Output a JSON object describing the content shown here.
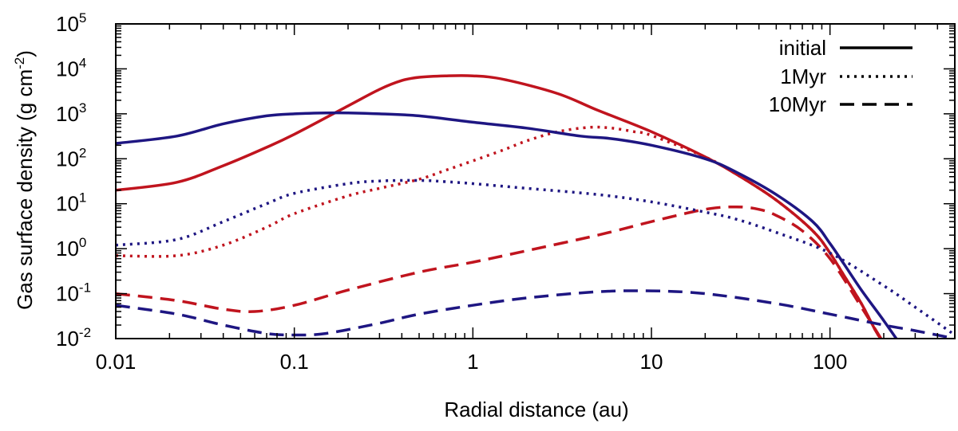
{
  "chart_data": {
    "type": "line",
    "xscale": "log",
    "yscale": "log",
    "xlim": [
      0.01,
      500
    ],
    "ylim": [
      0.01,
      100000
    ],
    "xlabel": "Radial distance (au)",
    "ylabel": "Gas surface density (g cm⁻²)",
    "ylabel_parts": [
      "Gas surface density (g cm",
      "-2",
      ")"
    ],
    "xticks": [
      {
        "value": 0.01,
        "label": "0.01"
      },
      {
        "value": 0.1,
        "label": "0.1"
      },
      {
        "value": 1,
        "label": "1"
      },
      {
        "value": 10,
        "label": "10"
      },
      {
        "value": 100,
        "label": "100"
      }
    ],
    "yticks": [
      {
        "value": 0.01,
        "base": "10",
        "exp": "-2"
      },
      {
        "value": 0.1,
        "base": "10",
        "exp": "-1"
      },
      {
        "value": 1,
        "base": "10",
        "exp": "0"
      },
      {
        "value": 10,
        "base": "10",
        "exp": "1"
      },
      {
        "value": 100,
        "base": "10",
        "exp": "2"
      },
      {
        "value": 1000,
        "base": "10",
        "exp": "3"
      },
      {
        "value": 10000,
        "base": "10",
        "exp": "4"
      },
      {
        "value": 100000,
        "base": "10",
        "exp": "5"
      }
    ],
    "legend": {
      "placement": "top-right",
      "entries": [
        {
          "label": "initial",
          "style": "solid"
        },
        {
          "label": "1Myr",
          "style": "dotted"
        },
        {
          "label": "10Myr",
          "style": "dashed"
        }
      ]
    },
    "colors": {
      "red": "#c0141e",
      "blue": "#1e1682",
      "axis": "#000000"
    },
    "series": [
      {
        "name": "red initial",
        "color": "red",
        "style": "solid",
        "x": [
          0.01,
          0.022,
          0.04,
          0.07,
          0.1,
          0.2,
          0.3,
          0.4,
          0.5,
          0.7,
          1,
          1.5,
          3,
          5,
          10,
          20,
          30,
          50,
          80,
          100,
          120,
          150,
          180,
          200
        ],
        "y": [
          20,
          30,
          70,
          180,
          350,
          1500,
          3500,
          5500,
          6500,
          7000,
          7000,
          5800,
          2800,
          1200,
          400,
          110,
          45,
          12,
          2.5,
          0.8,
          0.25,
          0.06,
          0.015,
          0.008
        ]
      },
      {
        "name": "red 1Myr",
        "color": "red",
        "style": "dotted",
        "x": [
          0.01,
          0.022,
          0.04,
          0.07,
          0.1,
          0.2,
          0.3,
          0.5,
          0.7,
          1,
          1.5,
          2,
          3,
          4.5,
          6,
          8,
          10,
          20,
          30,
          50,
          80,
          100,
          120,
          150,
          180,
          200
        ],
        "y": [
          0.7,
          0.7,
          1.2,
          3,
          6,
          15,
          22,
          35,
          55,
          90,
          160,
          250,
          400,
          500,
          480,
          400,
          330,
          110,
          45,
          12,
          2.5,
          0.8,
          0.25,
          0.06,
          0.015,
          0.008
        ]
      },
      {
        "name": "red 10Myr",
        "color": "red",
        "style": "dashed",
        "x": [
          0.01,
          0.022,
          0.04,
          0.06,
          0.1,
          0.2,
          0.5,
          1,
          2,
          5,
          10,
          20,
          30,
          40,
          50,
          70,
          100,
          150,
          200
        ],
        "y": [
          0.1,
          0.07,
          0.045,
          0.04,
          0.055,
          0.12,
          0.3,
          0.5,
          0.9,
          2,
          4,
          7.5,
          8.5,
          7.5,
          5.5,
          2.5,
          0.6,
          0.05,
          0.008
        ]
      },
      {
        "name": "blue initial",
        "color": "blue",
        "style": "solid",
        "x": [
          0.01,
          0.022,
          0.04,
          0.07,
          0.1,
          0.15,
          0.2,
          0.3,
          0.5,
          1,
          2,
          4,
          6,
          10,
          20,
          30,
          50,
          80,
          100,
          120,
          150,
          200,
          250
        ],
        "y": [
          220,
          320,
          600,
          900,
          1000,
          1050,
          1050,
          1000,
          900,
          650,
          480,
          320,
          280,
          200,
          100,
          50,
          16,
          4,
          1.3,
          0.45,
          0.12,
          0.025,
          0.007
        ]
      },
      {
        "name": "blue 1Myr",
        "color": "blue",
        "style": "dotted",
        "x": [
          0.01,
          0.022,
          0.04,
          0.07,
          0.1,
          0.2,
          0.3,
          0.5,
          0.7,
          1,
          2,
          5,
          10,
          20,
          30,
          50,
          100,
          200,
          300,
          500
        ],
        "y": [
          1.2,
          1.6,
          4,
          10,
          17,
          28,
          32,
          33,
          31,
          28,
          22,
          16,
          11,
          6.5,
          4.5,
          2.3,
          0.8,
          0.15,
          0.05,
          0.012
        ]
      },
      {
        "name": "blue 10Myr",
        "color": "blue",
        "style": "dashed",
        "x": [
          0.01,
          0.022,
          0.04,
          0.07,
          0.1,
          0.15,
          0.3,
          0.5,
          1,
          2,
          5,
          10,
          20,
          50,
          100,
          200,
          300,
          500
        ],
        "y": [
          0.055,
          0.035,
          0.02,
          0.013,
          0.012,
          0.013,
          0.022,
          0.035,
          0.055,
          0.08,
          0.11,
          0.115,
          0.1,
          0.06,
          0.035,
          0.02,
          0.015,
          0.01
        ]
      }
    ]
  }
}
